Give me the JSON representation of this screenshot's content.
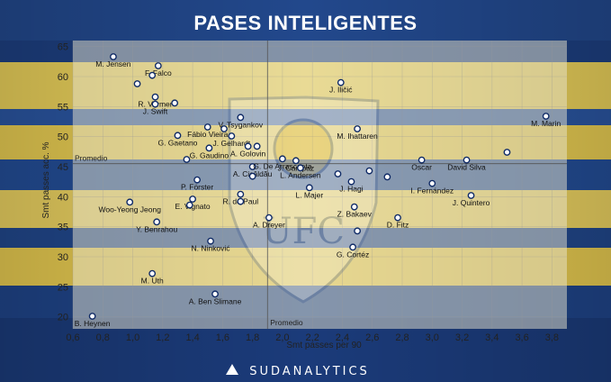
{
  "title": "PASES INTELIGENTES",
  "brand": "SUDANALYTICS",
  "chart_data": {
    "type": "scatter",
    "title": "PASES INTELIGENTES",
    "xlabel": "Smt passes per 90",
    "ylabel": "Smt passes acc. %",
    "xlim": [
      0.6,
      3.9
    ],
    "ylim": [
      18,
      66
    ],
    "xticks": [
      "0,6",
      "0,8",
      "1,0",
      "1,2",
      "1,4",
      "1,6",
      "1,8",
      "2,0",
      "2,2",
      "2,4",
      "2,6",
      "2,8",
      "3,0",
      "3,2",
      "3,4",
      "3,6",
      "3,8"
    ],
    "yticks": [
      "20",
      "25",
      "30",
      "35",
      "40",
      "45",
      "50",
      "55",
      "60",
      "65"
    ],
    "grid": true,
    "average_x": 1.9,
    "average_y": 45.5,
    "average_label_x": "Promedio",
    "average_label_y": "Promedio",
    "points": [
      {
        "label": "M. Jensen",
        "x": 0.87,
        "y": 63.3
      },
      {
        "label": "F. Falco",
        "x": 1.17,
        "y": 61.8
      },
      {
        "label": "",
        "x": 1.13,
        "y": 60.2
      },
      {
        "label": "",
        "x": 1.03,
        "y": 58.8
      },
      {
        "label": "R. Vormer",
        "x": 1.15,
        "y": 56.6
      },
      {
        "label": "",
        "x": 1.28,
        "y": 55.6
      },
      {
        "label": "J. Swift",
        "x": 1.15,
        "y": 55.4
      },
      {
        "label": "V. Tsygankov",
        "x": 1.72,
        "y": 53.2
      },
      {
        "label": "Fábio Vieira",
        "x": 1.5,
        "y": 51.6
      },
      {
        "label": "",
        "x": 1.61,
        "y": 51.3
      },
      {
        "label": "J. Gelhardt",
        "x": 1.66,
        "y": 50.1
      },
      {
        "label": "G. Gaetano",
        "x": 1.3,
        "y": 50.2
      },
      {
        "label": "G. Gaudino",
        "x": 1.51,
        "y": 48.1
      },
      {
        "label": "A. Golovin",
        "x": 1.77,
        "y": 48.4
      },
      {
        "label": "",
        "x": 1.83,
        "y": 48.4
      },
      {
        "label": "",
        "x": 1.36,
        "y": 46.2
      },
      {
        "label": "A. Cicâldău",
        "x": 1.8,
        "y": 45.0
      },
      {
        "label": "J. Campaz",
        "x": 2.09,
        "y": 46.0
      },
      {
        "label": "G. De Arrascaeta",
        "x": 2.0,
        "y": 46.3
      },
      {
        "label": "",
        "x": 1.8,
        "y": 43.4
      },
      {
        "label": "L. Andersen",
        "x": 2.12,
        "y": 44.8
      },
      {
        "label": "P. Förster",
        "x": 1.43,
        "y": 42.8
      },
      {
        "label": "",
        "x": 2.37,
        "y": 43.8
      },
      {
        "label": "",
        "x": 2.58,
        "y": 44.3
      },
      {
        "label": "",
        "x": 2.7,
        "y": 43.3
      },
      {
        "label": "L. Majer",
        "x": 2.18,
        "y": 41.5
      },
      {
        "label": "J. Hagi",
        "x": 2.46,
        "y": 42.5
      },
      {
        "label": "E. Vignato",
        "x": 1.4,
        "y": 39.6
      },
      {
        "label": "",
        "x": 1.38,
        "y": 38.6
      },
      {
        "label": "R. de Paul",
        "x": 1.72,
        "y": 40.4
      },
      {
        "label": "",
        "x": 1.72,
        "y": 39.2
      },
      {
        "label": "Woo-Yeong Jeong",
        "x": 0.98,
        "y": 39.1
      },
      {
        "label": "Y. Benrahou",
        "x": 1.16,
        "y": 35.8
      },
      {
        "label": "A. Dreyer",
        "x": 1.91,
        "y": 36.5
      },
      {
        "label": "Z. Bakaev",
        "x": 2.48,
        "y": 38.3
      },
      {
        "label": "D. Fitz",
        "x": 2.77,
        "y": 36.5
      },
      {
        "label": "",
        "x": 2.5,
        "y": 34.3
      },
      {
        "label": "N. Ninković",
        "x": 1.52,
        "y": 32.6
      },
      {
        "label": "G. Cortéz",
        "x": 2.47,
        "y": 31.6
      },
      {
        "label": "M. Uth",
        "x": 1.13,
        "y": 27.2
      },
      {
        "label": "A. Ben Slimane",
        "x": 1.55,
        "y": 23.8
      },
      {
        "label": "B. Heynen",
        "x": 0.73,
        "y": 20.1
      },
      {
        "label": "J. Iličić",
        "x": 2.39,
        "y": 59.0
      },
      {
        "label": "M. Ihattaren",
        "x": 2.5,
        "y": 51.3
      },
      {
        "label": "Oscar",
        "x": 2.93,
        "y": 46.1
      },
      {
        "label": "David Silva",
        "x": 3.23,
        "y": 46.1
      },
      {
        "label": "",
        "x": 3.5,
        "y": 47.4
      },
      {
        "label": "I. Fernández",
        "x": 3.0,
        "y": 42.2
      },
      {
        "label": "J. Quintero",
        "x": 3.26,
        "y": 40.2
      },
      {
        "label": "M. Marin",
        "x": 3.76,
        "y": 53.4
      }
    ]
  }
}
